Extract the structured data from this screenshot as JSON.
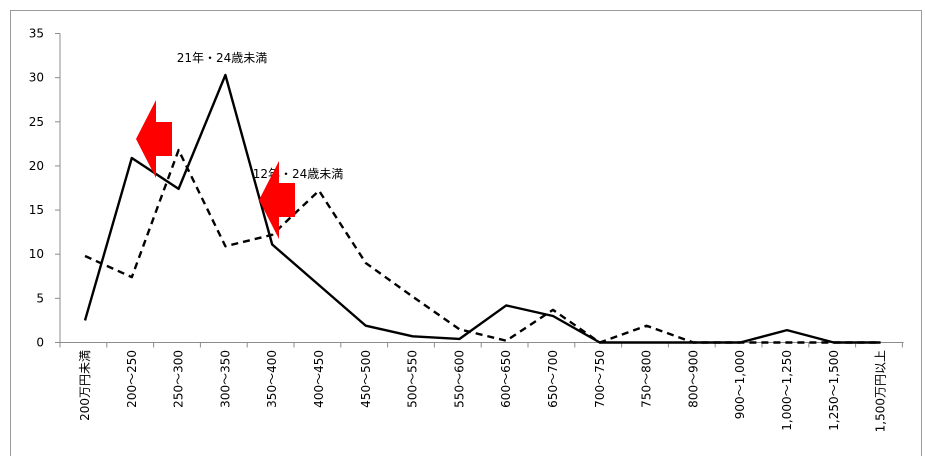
{
  "chart_data": {
    "type": "line",
    "categories": [
      "200万円未満",
      "200～250",
      "250～300",
      "300～350",
      "350～400",
      "400～450",
      "450～500",
      "500～550",
      "550～600",
      "600～650",
      "650～700",
      "700～750",
      "750～800",
      "800～900",
      "900～1,000",
      "1,000～1,250",
      "1,250～1,500",
      "1,500万円以上"
    ],
    "series": [
      {
        "name": "21年・24歳未満",
        "style": "solid",
        "color": "#000000",
        "values": [
          2.5,
          20.9,
          17.4,
          30.3,
          11.1,
          6.5,
          1.9,
          0.7,
          0.4,
          4.2,
          3.0,
          0,
          0,
          0,
          0,
          1.4,
          0,
          0
        ]
      },
      {
        "name": "12年・24歳未満",
        "style": "dashed",
        "color": "#000000",
        "values": [
          9.8,
          7.4,
          21.8,
          10.9,
          12.2,
          17.2,
          9.0,
          5.2,
          1.5,
          0.2,
          3.7,
          0,
          1.9,
          0,
          0,
          0,
          0,
          0
        ]
      }
    ],
    "ylim": [
      0,
      35
    ],
    "yticks": [
      0,
      5,
      10,
      15,
      20,
      25,
      30,
      35
    ],
    "grid": false,
    "annotation_arrows": [
      {
        "color": "#ff0000",
        "direction": "left"
      },
      {
        "color": "#ff0000",
        "direction": "left"
      }
    ]
  }
}
